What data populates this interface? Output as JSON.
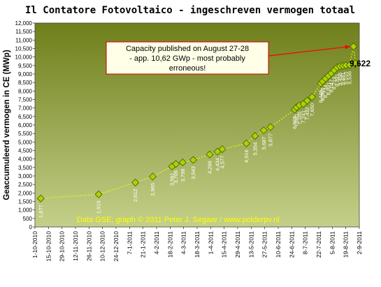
{
  "chart_data": {
    "type": "line",
    "title": "Il Contatore Fotovoltaico - ingeschreven vermogen totaal",
    "ylabel": "Geaccumuleerd vermogen in CE (MWp)",
    "xlabel": "",
    "ylim": [
      0,
      12000
    ],
    "ystep": 500,
    "yticks": [
      "0",
      "500",
      "1,000",
      "1,500",
      "2,000",
      "2,500",
      "3,000",
      "3,500",
      "4,000",
      "4,500",
      "5,000",
      "5,500",
      "6,000",
      "6,500",
      "7,000",
      "7,500",
      "8,000",
      "8,500",
      "9,000",
      "9,500",
      "10,000",
      "10,500",
      "11,000",
      "11,500",
      "12,000"
    ],
    "xlim": [
      "2010-10-01",
      "2011-09-02"
    ],
    "xticks": [
      "1-10-2010",
      "15-10-2010",
      "29-10-2010",
      "12-11-2010",
      "26-11-2010",
      "10-12-2010",
      "24-12-2010",
      "7-1-2011",
      "21-1-2011",
      "4-2-2011",
      "18-2-2011",
      "4-3-2011",
      "18-3-2011",
      "1-4-2011",
      "15-4-2011",
      "29-4-2011",
      "13-5-2011",
      "27-5-2011",
      "10-6-2011",
      "24-6-2011",
      "8-7-2011",
      "22-7-2011",
      "5-8-2011",
      "19-8-2011",
      "2-9-2011"
    ],
    "xtick_dates": [
      "2010-10-01",
      "2010-10-15",
      "2010-10-29",
      "2010-11-12",
      "2010-11-26",
      "2010-12-10",
      "2010-12-24",
      "2011-01-07",
      "2011-01-21",
      "2011-02-04",
      "2011-02-18",
      "2011-03-04",
      "2011-03-18",
      "2011-04-01",
      "2011-04-15",
      "2011-04-29",
      "2011-05-13",
      "2011-05-27",
      "2011-06-10",
      "2011-06-24",
      "2011-07-08",
      "2011-07-22",
      "2011-08-05",
      "2011-08-19",
      "2011-09-02"
    ],
    "grid": false,
    "colors": {
      "plot_bg_top": "#6f7f1a",
      "plot_bg_bottom": "#c4d08a",
      "marker": "#a8d400",
      "line": "#ffff00",
      "arrow": "#ff0000",
      "note_border": "#cc0000",
      "note_bg": "#ffffe8"
    },
    "series": [
      {
        "points": [
          {
            "x": "2010-10-07",
            "y": 1677,
            "label": "1,677"
          },
          {
            "x": "2010-12-06",
            "y": 1919,
            "label": "1,919"
          },
          {
            "x": "2011-01-13",
            "y": 2612,
            "label": "2,612"
          },
          {
            "x": "2011-01-31",
            "y": 2965,
            "label": "2,965"
          },
          {
            "x": "2011-02-20",
            "y": 3561,
            "label": "3,561"
          },
          {
            "x": "2011-02-24",
            "y": 3706,
            "label": "3,706"
          },
          {
            "x": "2011-03-03",
            "y": 3798,
            "label": "3,798"
          },
          {
            "x": "2011-03-14",
            "y": 3943,
            "label": "3,943"
          },
          {
            "x": "2011-03-31",
            "y": 4266,
            "label": "4,266"
          },
          {
            "x": "2011-04-08",
            "y": 4434,
            "label": "4,434"
          },
          {
            "x": "2011-04-13",
            "y": 4577,
            "label": "4,577"
          },
          {
            "x": "2011-05-08",
            "y": 4916,
            "label": "4,916"
          },
          {
            "x": "2011-05-17",
            "y": 5354,
            "label": "5,354"
          },
          {
            "x": "2011-05-26",
            "y": 5687,
            "label": "5,687"
          },
          {
            "x": "2011-06-02",
            "y": 5877,
            "label": "5,877"
          },
          {
            "x": "2011-06-27",
            "y": 6905,
            "label": "6,905"
          },
          {
            "x": "2011-06-29",
            "y": 7041,
            "label": "7,041"
          },
          {
            "x": "2011-07-02",
            "y": 7165,
            "label": "7,165"
          },
          {
            "x": "2011-07-06",
            "y": 7241,
            "label": "7,241"
          },
          {
            "x": "2011-07-10",
            "y": 7432,
            "label": "7,432"
          },
          {
            "x": "2011-07-15",
            "y": 7650,
            "label": "7,650"
          },
          {
            "x": "2011-07-24",
            "y": 8445,
            "label": "8,445"
          },
          {
            "x": "2011-07-26",
            "y": 8569,
            "label": "8,569"
          },
          {
            "x": "2011-07-29",
            "y": 8734,
            "label": "8,734"
          },
          {
            "x": "2011-08-01",
            "y": 8891,
            "label": "8,891"
          },
          {
            "x": "2011-08-04",
            "y": 9047,
            "label": "9,047"
          },
          {
            "x": "2011-08-07",
            "y": 9219,
            "label": "9,219"
          },
          {
            "x": "2011-08-10",
            "y": 9391,
            "label": "9,391"
          },
          {
            "x": "2011-08-13",
            "y": 9456,
            "label": "9,456"
          },
          {
            "x": "2011-08-16",
            "y": 9481,
            "label": "9,481"
          },
          {
            "x": "2011-08-19",
            "y": 9510,
            "label": "9,510"
          },
          {
            "x": "2011-08-23",
            "y": 9536,
            "label": "9,536"
          },
          {
            "x": "2011-08-27",
            "y": 10620,
            "label": ""
          },
          {
            "x": "2011-08-29",
            "y": 9622,
            "label": ""
          }
        ]
      }
    ],
    "callout_value": "9,622",
    "annotation": "Capacity published on August 27-28 - app. 10,62 GWp - most probably erroneous!",
    "annotation_lines": [
      "Capacity published on August 27-28",
      "- app. 10,62 GWp - most probably",
      "erroneous!"
    ],
    "credit": "Data GSE;  graph © 2011 Peter J. Segaar / www.polderpv.nl"
  }
}
